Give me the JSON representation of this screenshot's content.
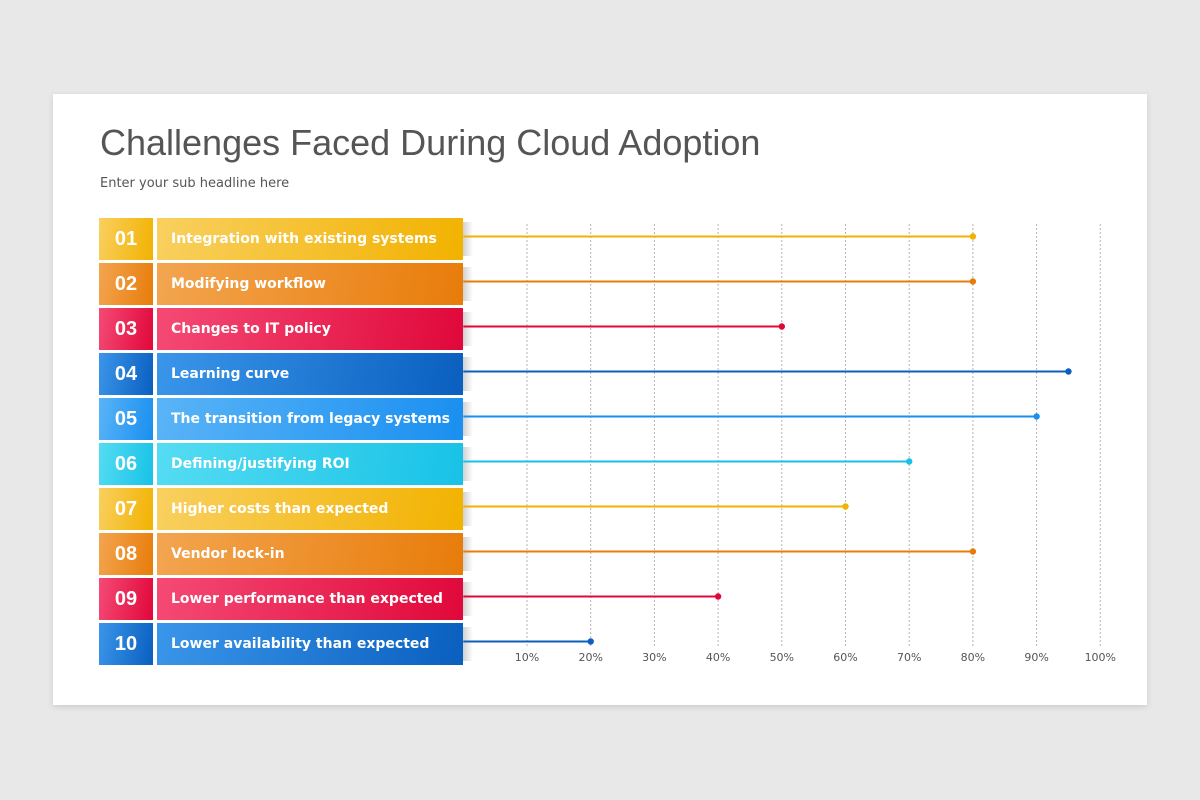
{
  "title": "Challenges Faced During Cloud Adoption",
  "subtitle": "Enter your sub headline here",
  "chart_data": {
    "type": "bar",
    "style": "lollipop-horizontal",
    "title": "Challenges Faced During Cloud Adoption",
    "subtitle": "Enter your sub headline here",
    "xlim": [
      0,
      100
    ],
    "grid": true,
    "tick_labels": [
      "10%",
      "20%",
      "30%",
      "40%",
      "50%",
      "60%",
      "70%",
      "80%",
      "90%",
      "100%"
    ],
    "categories": [
      {
        "num": "01",
        "label": "Integration with existing systems",
        "value": 80,
        "color": "#f2b200"
      },
      {
        "num": "02",
        "label": "Modifying workflow",
        "value": 80,
        "color": "#e87c0a"
      },
      {
        "num": "03",
        "label": "Changes to IT policy",
        "value": 50,
        "color": "#e0083a"
      },
      {
        "num": "04",
        "label": "Learning curve",
        "value": 95,
        "color": "#0a5fbf"
      },
      {
        "num": "05",
        "label": "The transition from legacy systems",
        "value": 90,
        "color": "#1a8ff0"
      },
      {
        "num": "06",
        "label": "Defining/justifying ROI",
        "value": 70,
        "color": "#18c2e6"
      },
      {
        "num": "07",
        "label": "Higher costs than expected",
        "value": 60,
        "color": "#f2b200"
      },
      {
        "num": "08",
        "label": "Vendor lock-in",
        "value": 80,
        "color": "#e87c0a"
      },
      {
        "num": "09",
        "label": "Lower performance than expected",
        "value": 40,
        "color": "#e0083a"
      },
      {
        "num": "10",
        "label": "Lower availability than expected",
        "value": 20,
        "color": "#0a5fbf"
      }
    ]
  }
}
